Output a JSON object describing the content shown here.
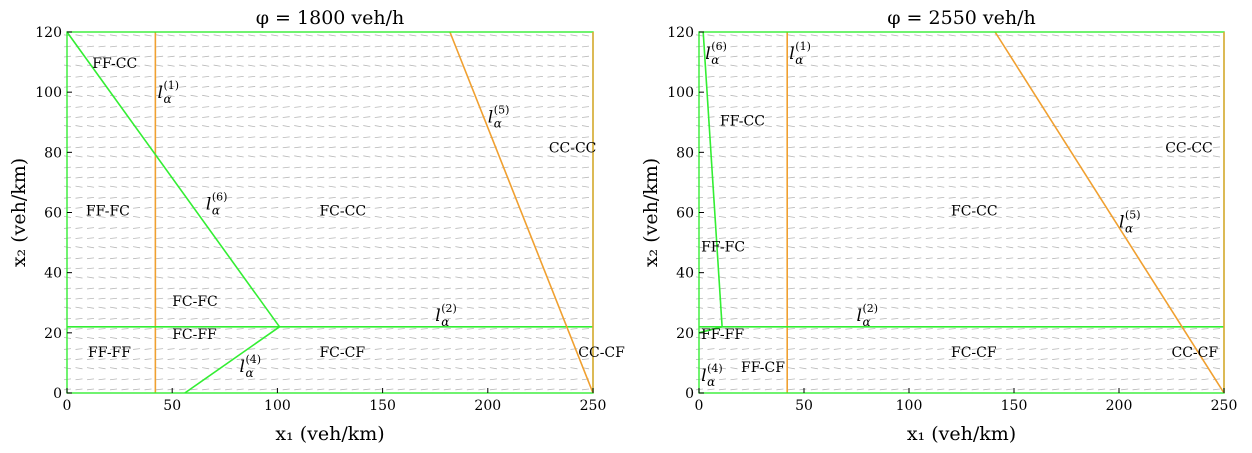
{
  "colors": {
    "boundary_green": "#33ee33",
    "boundary_orange": "#f0a030",
    "field_gray": "#b8b8b8",
    "axes": "#000000"
  },
  "chart_data": [
    {
      "type": "vector-field",
      "title": "φ = 1800 veh/h",
      "xlabel": "x₁ (veh/km)",
      "ylabel": "x₂ (veh/km)",
      "xlim": [
        0,
        250
      ],
      "ylim": [
        0,
        120
      ],
      "xticks": [
        0,
        50,
        100,
        150,
        200,
        250
      ],
      "yticks": [
        0,
        20,
        40,
        60,
        80,
        100,
        120
      ],
      "lines": [
        {
          "label": "l_α^(1)",
          "color": "orange",
          "points": [
            [
              42,
              0
            ],
            [
              42,
              120
            ]
          ]
        },
        {
          "label": "l_α^(2)",
          "color": "green",
          "points": [
            [
              0,
              22
            ],
            [
              250,
              22
            ]
          ]
        },
        {
          "label": "l_α^(4)",
          "color": "green",
          "points": [
            [
              56,
              0
            ],
            [
              101,
              22
            ]
          ]
        },
        {
          "label": "l_α^(5)",
          "color": "orange",
          "points": [
            [
              182,
              120
            ],
            [
              250,
              0
            ]
          ]
        },
        {
          "label": "l_α^(6)",
          "color": "green",
          "points": [
            [
              0,
              120
            ],
            [
              101,
              22
            ]
          ]
        }
      ],
      "line_labels": [
        {
          "base": "l",
          "sub": "α",
          "sup": "(1)",
          "x": 43,
          "y": 98
        },
        {
          "base": "l",
          "sub": "α",
          "sup": "(6)",
          "x": 66,
          "y": 61
        },
        {
          "base": "l",
          "sub": "α",
          "sup": "(5)",
          "x": 200,
          "y": 90
        },
        {
          "base": "l",
          "sub": "α",
          "sup": "(2)",
          "x": 175,
          "y": 24
        },
        {
          "base": "l",
          "sub": "α",
          "sup": "(4)",
          "x": 82,
          "y": 7
        }
      ],
      "regions": [
        {
          "text": "FF-CC",
          "x": 12,
          "y": 108
        },
        {
          "text": "FF-FC",
          "x": 9,
          "y": 59
        },
        {
          "text": "FC-CC",
          "x": 120,
          "y": 59
        },
        {
          "text": "CC-CC",
          "x": 229,
          "y": 80
        },
        {
          "text": "FC-FC",
          "x": 50,
          "y": 29
        },
        {
          "text": "FC-FF",
          "x": 50,
          "y": 18
        },
        {
          "text": "FF-FF",
          "x": 10,
          "y": 12
        },
        {
          "text": "FC-CF",
          "x": 120,
          "y": 12
        },
        {
          "text": "CC-CF",
          "x": 243,
          "y": 12
        }
      ]
    },
    {
      "type": "vector-field",
      "title": "φ = 2550 veh/h",
      "xlabel": "x₁ (veh/km)",
      "ylabel": "x₂ (veh/km)",
      "xlim": [
        0,
        250
      ],
      "ylim": [
        0,
        120
      ],
      "xticks": [
        0,
        50,
        100,
        150,
        200,
        250
      ],
      "yticks": [
        0,
        20,
        40,
        60,
        80,
        100,
        120
      ],
      "lines": [
        {
          "label": "l_α^(1)",
          "color": "orange",
          "points": [
            [
              42,
              0
            ],
            [
              42,
              120
            ]
          ]
        },
        {
          "label": "l_α^(2)",
          "color": "green",
          "points": [
            [
              0,
              22
            ],
            [
              250,
              22
            ]
          ]
        },
        {
          "label": "l_α^(4)",
          "color": "green",
          "points": [
            [
              0,
              20
            ],
            [
              11,
              22
            ]
          ]
        },
        {
          "label": "l_α^(5)",
          "color": "orange",
          "points": [
            [
              141,
              120
            ],
            [
              250,
              0
            ]
          ]
        },
        {
          "label": "l_α^(6)",
          "color": "green",
          "points": [
            [
              2,
              120
            ],
            [
              11,
              22
            ]
          ]
        }
      ],
      "line_labels": [
        {
          "base": "l",
          "sub": "α",
          "sup": "(6)",
          "x": 3,
          "y": 111
        },
        {
          "base": "l",
          "sub": "α",
          "sup": "(1)",
          "x": 43,
          "y": 111
        },
        {
          "base": "l",
          "sub": "α",
          "sup": "(5)",
          "x": 200,
          "y": 55
        },
        {
          "base": "l",
          "sub": "α",
          "sup": "(2)",
          "x": 75,
          "y": 24
        },
        {
          "base": "l",
          "sub": "α",
          "sup": "(4)",
          "x": 1,
          "y": 4
        }
      ],
      "regions": [
        {
          "text": "FF-CC",
          "x": 10,
          "y": 89
        },
        {
          "text": "CC-CC",
          "x": 222,
          "y": 80
        },
        {
          "text": "FC-CC",
          "x": 120,
          "y": 59
        },
        {
          "text": "FF-FC",
          "x": 1,
          "y": 47
        },
        {
          "text": "FF-FF",
          "x": 1,
          "y": 18
        },
        {
          "text": "FF-CF",
          "x": 20,
          "y": 7
        },
        {
          "text": "FC-CF",
          "x": 120,
          "y": 12
        },
        {
          "text": "CC-CF",
          "x": 225,
          "y": 12
        }
      ]
    }
  ]
}
